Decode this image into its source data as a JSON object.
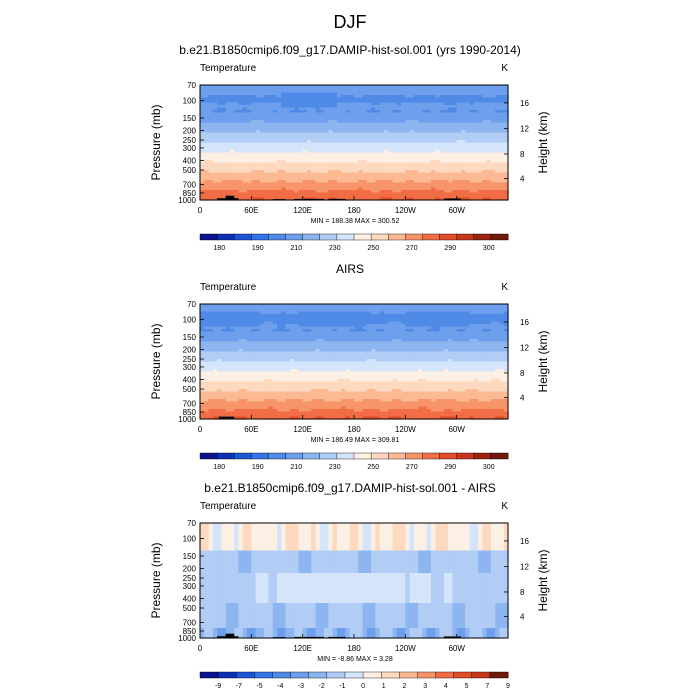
{
  "figure": {
    "title": "DJF"
  },
  "chart_data": [
    {
      "type": "heatmap",
      "title": "b.e21.B1850cmip6.f09_g17.DAMIP-hist-sol.001 (yrs 1990-2014)",
      "left_label": "Temperature",
      "right_label": "K",
      "xlabel": "",
      "ylabel": "Pressure (mb)",
      "ylabel_right": "Height (km)",
      "xticks": [
        "0",
        "60E",
        "120E",
        "180",
        "120W",
        "60W"
      ],
      "xtick_lon": [
        0,
        60,
        120,
        180,
        240,
        300
      ],
      "xlim": [
        0,
        360
      ],
      "yticks": [
        70,
        100,
        150,
        200,
        250,
        300,
        400,
        500,
        700,
        850,
        1000
      ],
      "ylim": [
        70,
        1000
      ],
      "yscale": "log",
      "height_ticks_km": [
        4,
        8,
        12,
        16
      ],
      "stats": "MIN = 188.38  MAX = 300.52",
      "min": 188.38,
      "max": 300.52,
      "colorbar": {
        "labels": [
          "180",
          "190",
          "210",
          "230",
          "250",
          "270",
          "290",
          "300"
        ],
        "colors": [
          "#08138c",
          "#0d2fb3",
          "#1c55d6",
          "#3273e6",
          "#4e8ae6",
          "#6d9fec",
          "#8db6f0",
          "#b1cdf5",
          "#d4e4fa",
          "#fcf0e4",
          "#fcd9bf",
          "#fbb994",
          "#f8946a",
          "#f06d46",
          "#e04c25",
          "#c4371b",
          "#98240e",
          "#6e1a0c"
        ],
        "levels": [
          170,
          175,
          180,
          185,
          190,
          200,
          210,
          220,
          230,
          240,
          250,
          260,
          270,
          280,
          290,
          295,
          300,
          305,
          310
        ]
      }
    },
    {
      "type": "heatmap",
      "title": "AIRS",
      "left_label": "Temperature",
      "right_label": "K",
      "xlabel": "",
      "ylabel": "Pressure (mb)",
      "ylabel_right": "Height (km)",
      "xticks": [
        "0",
        "60E",
        "120E",
        "180",
        "120W",
        "60W"
      ],
      "xtick_lon": [
        0,
        60,
        120,
        180,
        240,
        300
      ],
      "xlim": [
        0,
        360
      ],
      "yticks": [
        70,
        100,
        150,
        200,
        250,
        300,
        400,
        500,
        700,
        850,
        1000
      ],
      "ylim": [
        70,
        1000
      ],
      "yscale": "log",
      "height_ticks_km": [
        4,
        8,
        12,
        16
      ],
      "stats": "MIN = 186.49  MAX = 309.81",
      "min": 186.49,
      "max": 309.81,
      "colorbar": {
        "labels": [
          "180",
          "190",
          "210",
          "230",
          "250",
          "270",
          "290",
          "300"
        ],
        "colors": [
          "#08138c",
          "#0d2fb3",
          "#1c55d6",
          "#3273e6",
          "#4e8ae6",
          "#6d9fec",
          "#8db6f0",
          "#b1cdf5",
          "#d4e4fa",
          "#fcf0e4",
          "#fcd9bf",
          "#fbb994",
          "#f8946a",
          "#f06d46",
          "#e04c25",
          "#c4371b",
          "#98240e",
          "#6e1a0c"
        ],
        "levels": [
          170,
          175,
          180,
          185,
          190,
          200,
          210,
          220,
          230,
          240,
          250,
          260,
          270,
          280,
          290,
          295,
          300,
          305,
          310
        ]
      }
    },
    {
      "type": "heatmap",
      "title": "b.e21.B1850cmip6.f09_g17.DAMIP-hist-sol.001 - AIRS",
      "left_label": "Temperature",
      "right_label": "K",
      "xlabel": "",
      "ylabel": "Pressure (mb)",
      "ylabel_right": "Height (km)",
      "xticks": [
        "0",
        "60E",
        "120E",
        "180",
        "120W",
        "60W"
      ],
      "xtick_lon": [
        0,
        60,
        120,
        180,
        240,
        300
      ],
      "xlim": [
        0,
        360
      ],
      "yticks": [
        70,
        100,
        150,
        200,
        250,
        300,
        400,
        500,
        700,
        850,
        1000
      ],
      "ylim": [
        70,
        1000
      ],
      "yscale": "log",
      "height_ticks_km": [
        4,
        8,
        12,
        16
      ],
      "stats": "MIN = -8.86  MAX =  3.28",
      "min": -8.86,
      "max": 3.28,
      "colorbar": {
        "labels": [
          "-9",
          "-7",
          "-5",
          "-4",
          "-3",
          "-2",
          "-1",
          "0",
          "1",
          "2",
          "3",
          "4",
          "5",
          "7",
          "9"
        ],
        "colors": [
          "#08138c",
          "#0d2fb3",
          "#1c55d6",
          "#3273e6",
          "#4e8ae6",
          "#6d9fec",
          "#8db6f0",
          "#b1cdf5",
          "#d4e4fa",
          "#fcf0e4",
          "#fcd9bf",
          "#fbb994",
          "#f8946a",
          "#f06d46",
          "#e04c25",
          "#c4371b",
          "#6e1a0c"
        ],
        "levels": [
          -11,
          -9,
          -7,
          -5,
          -4,
          -3,
          -2,
          -1,
          0,
          1,
          2,
          3,
          4,
          5,
          7,
          9,
          11
        ]
      }
    }
  ]
}
